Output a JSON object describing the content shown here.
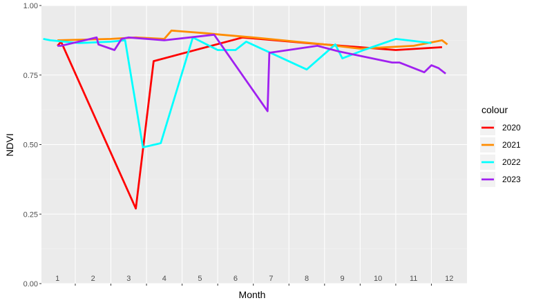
{
  "chart_data": {
    "type": "line",
    "title": "",
    "xlabel": "Month",
    "ylabel": "NDVI",
    "xlim": [
      0.55,
      12.5
    ],
    "ylim": [
      0,
      1
    ],
    "x_ticks": [
      {
        "value": 1,
        "label": "1"
      },
      {
        "value": 2,
        "label": "2"
      },
      {
        "value": 3,
        "label": "3"
      },
      {
        "value": 4,
        "label": "4"
      },
      {
        "value": 5,
        "label": "5"
      },
      {
        "value": 6,
        "label": "6"
      },
      {
        "value": 7,
        "label": "7"
      },
      {
        "value": 8,
        "label": "8"
      },
      {
        "value": 9,
        "label": "9"
      },
      {
        "value": 10,
        "label": "10"
      },
      {
        "value": 11,
        "label": "11"
      },
      {
        "value": 12,
        "label": "12"
      }
    ],
    "y_ticks": [
      {
        "value": 0,
        "label": "0.00"
      },
      {
        "value": 0.25,
        "label": "0.25"
      },
      {
        "value": 0.5,
        "label": "0.50"
      },
      {
        "value": 0.75,
        "label": "0.75"
      },
      {
        "value": 1,
        "label": "1.00"
      }
    ],
    "grid": true,
    "legend": {
      "title": "colour",
      "position": "right"
    },
    "series": [
      {
        "name": "2020",
        "color": "#FF0000",
        "x": [
          1.0,
          1.1,
          3.2,
          3.7,
          6.2,
          8.0,
          10.5,
          11.8
        ],
        "y": [
          0.855,
          0.87,
          0.27,
          0.8,
          0.885,
          0.865,
          0.84,
          0.85
        ]
      },
      {
        "name": "2021",
        "color": "#FF8C00",
        "x": [
          1.0,
          2.5,
          3.2,
          4.0,
          4.2,
          5.2,
          5.6,
          6.5,
          8.5,
          9.5,
          11.0,
          11.8,
          11.95
        ],
        "y": [
          0.875,
          0.88,
          0.885,
          0.88,
          0.91,
          0.9,
          0.895,
          0.885,
          0.86,
          0.845,
          0.855,
          0.875,
          0.86
        ]
      },
      {
        "name": "2022",
        "color": "#00FFFF",
        "x": [
          0.6,
          0.8,
          1.6,
          2.5,
          2.9,
          3.4,
          3.9,
          4.8,
          5.5,
          6.0,
          6.3,
          8.0,
          8.8,
          9.0,
          9.6,
          10.5,
          11.5
        ],
        "y": [
          0.88,
          0.875,
          0.865,
          0.87,
          0.875,
          0.49,
          0.505,
          0.885,
          0.84,
          0.84,
          0.87,
          0.77,
          0.86,
          0.81,
          0.84,
          0.88,
          0.865
        ]
      },
      {
        "name": "2023",
        "color": "#A020F0",
        "x": [
          1.0,
          1.1,
          2.1,
          2.15,
          2.6,
          2.8,
          3.0,
          4.0,
          5.4,
          6.9,
          6.95,
          8.3,
          8.9,
          10.4,
          10.6,
          11.3,
          11.5,
          11.7,
          11.9
        ],
        "y": [
          0.855,
          0.855,
          0.885,
          0.86,
          0.84,
          0.88,
          0.885,
          0.875,
          0.895,
          0.62,
          0.83,
          0.855,
          0.835,
          0.795,
          0.795,
          0.76,
          0.785,
          0.775,
          0.755
        ]
      }
    ]
  }
}
